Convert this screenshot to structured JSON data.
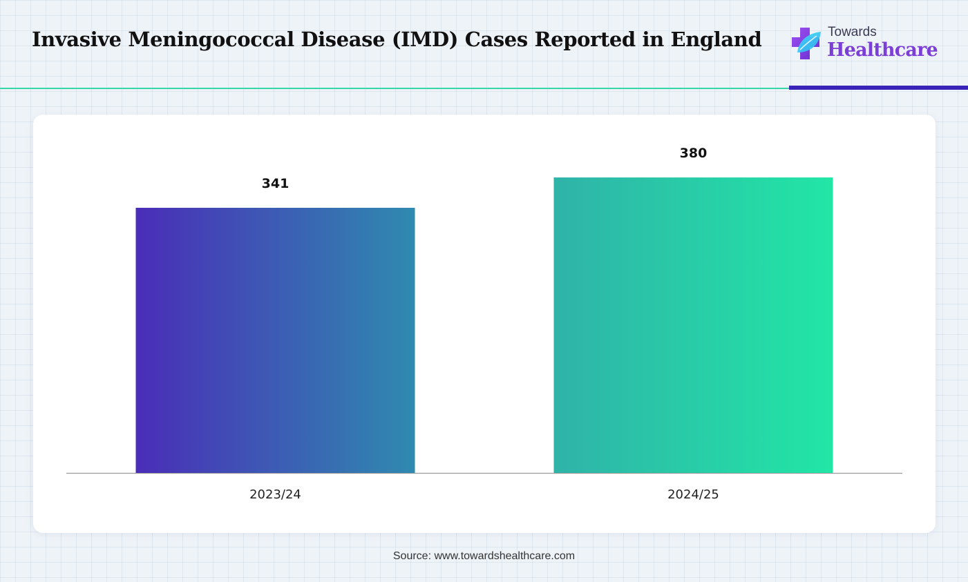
{
  "header": {
    "title": "Invasive Meningococcal Disease (IMD) Cases Reported in England"
  },
  "logo": {
    "top_text": "Towards",
    "brand_text": "Healthcare",
    "icon": "medical-cross-leaf-icon"
  },
  "colors": {
    "accent_line": "#34d6a8",
    "accent_bar": "#3a23b8",
    "brand": "#7b3fd6",
    "bar1_start": "#4a2db8",
    "bar1_end": "#2f8ab0",
    "bar2_start": "#2fb3a8",
    "bar2_end": "#22e6a6"
  },
  "chart_data": {
    "type": "bar",
    "title": "Invasive Meningococcal Disease (IMD) Cases Reported in England",
    "categories": [
      "2023/24",
      "2024/25"
    ],
    "values": [
      341,
      380
    ],
    "value_labels": [
      "341",
      "380"
    ],
    "xlabel": "",
    "ylabel": "",
    "ylim": [
      0,
      420
    ],
    "grid": false,
    "legend": "none"
  },
  "footer": {
    "source": "Source: www.towardshealthcare.com"
  }
}
